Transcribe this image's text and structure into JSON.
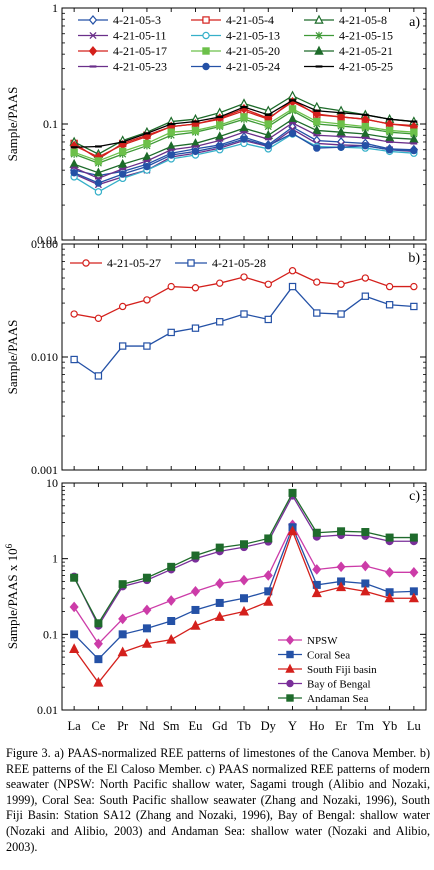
{
  "elements": [
    "La",
    "Ce",
    "Pr",
    "Nd",
    "Sm",
    "Eu",
    "Gd",
    "Tb",
    "Dy",
    "Y",
    "Ho",
    "Er",
    "Tm",
    "Yb",
    "Lu"
  ],
  "chart_data": [
    {
      "panel": "a)",
      "type": "line",
      "ylabel": "Sample/PAAS",
      "yscale": "log",
      "ylim": [
        0.01,
        1
      ],
      "yticks": [
        0.01,
        0.1,
        1
      ],
      "ytick_labels": [
        "0.01",
        "0.1",
        "1"
      ],
      "legend_position": "top",
      "series": [
        {
          "name": "4-21-05-3",
          "color": "#2451a6",
          "marker": "diamond-open",
          "values": [
            0.04,
            0.036,
            0.039,
            0.045,
            0.056,
            0.061,
            0.066,
            0.077,
            0.066,
            0.094,
            0.072,
            0.07,
            0.068,
            0.061,
            0.06
          ]
        },
        {
          "name": "4-21-05-4",
          "color": "#d4201c",
          "marker": "square-open",
          "values": [
            0.068,
            0.05,
            0.068,
            0.08,
            0.095,
            0.1,
            0.11,
            0.13,
            0.11,
            0.16,
            0.12,
            0.115,
            0.11,
            0.1,
            0.097
          ]
        },
        {
          "name": "4-21-05-8",
          "color": "#1d6b2a",
          "marker": "triangle-open",
          "values": [
            0.07,
            0.055,
            0.072,
            0.085,
            0.105,
            0.11,
            0.125,
            0.15,
            0.13,
            0.175,
            0.14,
            0.13,
            0.12,
            0.11,
            0.105
          ]
        },
        {
          "name": "4-21-05-11",
          "color": "#6a2f8a",
          "marker": "x",
          "values": [
            0.037,
            0.03,
            0.035,
            0.04,
            0.052,
            0.056,
            0.062,
            0.072,
            0.064,
            0.09,
            0.068,
            0.066,
            0.065,
            0.06,
            0.058
          ]
        },
        {
          "name": "4-21-05-13",
          "color": "#36b0c9",
          "marker": "circle-open",
          "values": [
            0.035,
            0.026,
            0.034,
            0.04,
            0.05,
            0.054,
            0.06,
            0.068,
            0.061,
            0.082,
            0.064,
            0.063,
            0.062,
            0.058,
            0.056
          ]
        },
        {
          "name": "4-21-05-15",
          "color": "#3f9a37",
          "marker": "asterisk",
          "values": [
            0.055,
            0.046,
            0.055,
            0.065,
            0.08,
            0.085,
            0.095,
            0.11,
            0.095,
            0.13,
            0.1,
            0.096,
            0.092,
            0.085,
            0.082
          ]
        },
        {
          "name": "4-21-05-17",
          "color": "#d4201c",
          "marker": "diamond",
          "values": [
            0.065,
            0.052,
            0.066,
            0.078,
            0.095,
            0.1,
            0.112,
            0.135,
            0.112,
            0.155,
            0.122,
            0.115,
            0.11,
            0.1,
            0.095
          ]
        },
        {
          "name": "4-21-05-20",
          "color": "#6cc04a",
          "marker": "square",
          "values": [
            0.057,
            0.048,
            0.058,
            0.068,
            0.085,
            0.088,
            0.098,
            0.115,
            0.1,
            0.135,
            0.105,
            0.1,
            0.095,
            0.088,
            0.085
          ]
        },
        {
          "name": "4-21-05-21",
          "color": "#1d6b2a",
          "marker": "triangle",
          "values": [
            0.045,
            0.038,
            0.045,
            0.052,
            0.064,
            0.068,
            0.078,
            0.092,
            0.08,
            0.11,
            0.088,
            0.085,
            0.082,
            0.076,
            0.074
          ]
        },
        {
          "name": "4-21-05-23",
          "color": "#6a2f8a",
          "marker": "dash",
          "values": [
            0.042,
            0.034,
            0.041,
            0.048,
            0.06,
            0.064,
            0.072,
            0.085,
            0.074,
            0.102,
            0.08,
            0.078,
            0.076,
            0.07,
            0.068
          ]
        },
        {
          "name": "4-21-05-24",
          "color": "#2451a6",
          "marker": "circle",
          "values": [
            0.038,
            0.031,
            0.037,
            0.043,
            0.054,
            0.058,
            0.064,
            0.074,
            0.065,
            0.083,
            0.062,
            0.063,
            0.065,
            0.06,
            0.059
          ]
        },
        {
          "name": "4-21-05-25",
          "color": "#000000",
          "marker": "dash",
          "values": [
            0.063,
            0.064,
            0.07,
            0.083,
            0.1,
            0.105,
            0.115,
            0.14,
            0.12,
            0.16,
            0.13,
            0.125,
            0.12,
            0.11,
            0.105
          ]
        }
      ]
    },
    {
      "panel": "b)",
      "type": "line",
      "ylabel": "Sample/PAAS",
      "yscale": "log",
      "ylim": [
        0.001,
        0.1
      ],
      "yticks": [
        0.001,
        0.01,
        0.1
      ],
      "ytick_labels": [
        "0.001",
        "0.010",
        "0.100"
      ],
      "legend_position": "top-left",
      "series": [
        {
          "name": "4-21-05-27",
          "color": "#d4201c",
          "marker": "circle-open",
          "values": [
            0.024,
            0.022,
            0.028,
            0.032,
            0.042,
            0.041,
            0.045,
            0.051,
            0.044,
            0.058,
            0.046,
            0.044,
            0.05,
            0.042,
            0.042
          ]
        },
        {
          "name": "4-21-05-28",
          "color": "#2451a6",
          "marker": "square-open",
          "values": [
            0.0095,
            0.0068,
            0.0125,
            0.0125,
            0.0165,
            0.018,
            0.0205,
            0.024,
            0.0215,
            0.042,
            0.0245,
            0.024,
            0.0345,
            0.029,
            0.028
          ]
        }
      ]
    },
    {
      "panel": "c)",
      "type": "line",
      "ylabel": "Sample/PAAS x 10",
      "ylabel_superscript": "6",
      "yscale": "log",
      "ylim": [
        0.01,
        10
      ],
      "yticks": [
        0.01,
        0.1,
        1,
        10
      ],
      "ytick_labels": [
        "0.01",
        "0.1",
        "1",
        "10"
      ],
      "legend_position": "bottom-center",
      "series": [
        {
          "name": "NPSW",
          "color": "#cc3ca8",
          "marker": "diamond",
          "values": [
            0.23,
            0.075,
            0.16,
            0.21,
            0.28,
            0.37,
            0.47,
            0.52,
            0.6,
            2.8,
            0.72,
            0.78,
            0.8,
            0.66,
            0.66
          ]
        },
        {
          "name": "Coral Sea",
          "color": "#2451a6",
          "marker": "square",
          "values": [
            0.1,
            0.047,
            0.1,
            0.12,
            0.15,
            0.21,
            0.26,
            0.3,
            0.37,
            2.6,
            0.45,
            0.5,
            0.47,
            0.36,
            0.37
          ]
        },
        {
          "name": "South Fiji basin",
          "color": "#d4201c",
          "marker": "triangle",
          "values": [
            0.064,
            0.023,
            0.058,
            0.075,
            0.085,
            0.13,
            0.17,
            0.2,
            0.27,
            2.3,
            0.35,
            0.42,
            0.37,
            0.3,
            0.3
          ]
        },
        {
          "name": "Bay of Bengal",
          "color": "#7a2f9a",
          "marker": "circle",
          "values": [
            0.58,
            0.13,
            0.43,
            0.52,
            0.72,
            1.0,
            1.25,
            1.42,
            1.68,
            6.8,
            1.95,
            2.05,
            2.0,
            1.7,
            1.7
          ]
        },
        {
          "name": "Andaman Sea",
          "color": "#1f6b2c",
          "marker": "square",
          "values": [
            0.56,
            0.14,
            0.46,
            0.56,
            0.78,
            1.1,
            1.4,
            1.55,
            1.85,
            7.4,
            2.2,
            2.3,
            2.25,
            1.9,
            1.9
          ]
        }
      ]
    }
  ],
  "caption": "Figure 3. a) PAAS-normalized REE patterns of limestones of the Canova Member. b) REE patterns of the El Caloso Member. c) PAAS normalized REE patterns of modern seawater (NPSW: North Pacific shallow water, Sagami trough (Alibio and Nozaki, 1999), Coral Sea: South Pacific shallow seawater (Zhang and Nozaki, 1996), South Fiji Basin: Station SA12 (Zhang and Nozaki, 1996), Bay of Bengal: shallow water (Nozaki and Alibio, 2003) and Andaman Sea: shallow water (Nozaki and Alibio, 2003)."
}
